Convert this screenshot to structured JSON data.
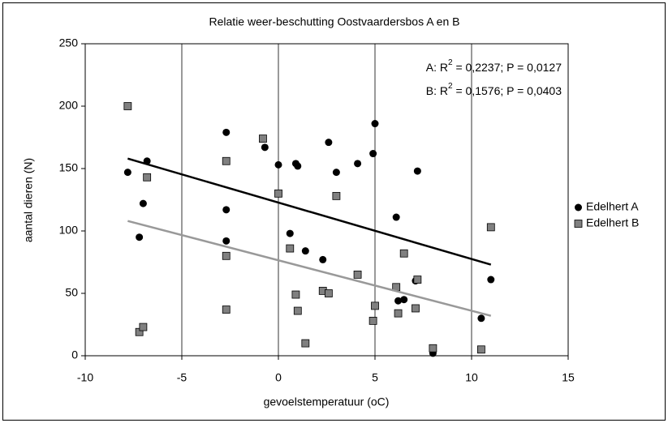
{
  "chart_data": {
    "type": "scatter",
    "title": "Relatie weer-beschutting Oostvaardersbos A en B",
    "x_label": "gevoelstemperatuur (oC)",
    "y_label": "aantal dieren (N)",
    "xlim": [
      -10,
      15
    ],
    "xticks": [
      -10,
      -5,
      0,
      5,
      10,
      15
    ],
    "ylim": [
      0,
      250
    ],
    "yticks": [
      0,
      50,
      100,
      150,
      200,
      250
    ],
    "grid": "x",
    "legend": "right",
    "annotations": [
      {
        "prefix": "A: R",
        "sup": "2",
        "suffix": " = 0,2237; P = 0,0127"
      },
      {
        "prefix": "B: R",
        "sup": "2",
        "suffix": " = 0,1576; P = 0,0403"
      }
    ],
    "series": [
      {
        "name": "Edelhert A",
        "color": "#000000",
        "marker": "circle",
        "trend_color": "#000000",
        "x": [
          -7.8,
          -7.2,
          -7.0,
          -6.8,
          -2.7,
          -2.7,
          -2.7,
          -0.7,
          0,
          0.6,
          0.9,
          1.0,
          1.4,
          2.3,
          2.6,
          3.0,
          4.1,
          5.0,
          4.9,
          6.1,
          6.2,
          6.5,
          7.2,
          7.1,
          8.0,
          10.5,
          11.0
        ],
        "values": [
          147,
          95,
          122,
          156,
          179,
          117,
          92,
          167,
          153,
          98,
          154,
          152,
          84,
          77,
          171,
          147,
          154,
          186,
          162,
          111,
          44,
          45,
          148,
          60,
          2,
          30,
          61
        ],
        "trend": [
          [
            -7.8,
            158
          ],
          [
            11.0,
            73
          ]
        ]
      },
      {
        "name": "Edelhert B",
        "color": "#808080",
        "marker": "square",
        "trend_color": "#999999",
        "x": [
          -7.8,
          -7.2,
          -7.0,
          -6.8,
          -2.7,
          -2.7,
          -2.7,
          -0.8,
          0,
          0.6,
          0.9,
          1.0,
          1.4,
          2.3,
          2.6,
          3.0,
          4.1,
          5.0,
          4.9,
          6.1,
          6.2,
          6.5,
          7.2,
          7.1,
          8.0,
          10.5,
          11.0
        ],
        "values": [
          200,
          19,
          23,
          143,
          156,
          80,
          37,
          174,
          130,
          86,
          49,
          36,
          10,
          52,
          50,
          128,
          65,
          40,
          28,
          55,
          34,
          82,
          61,
          38,
          6,
          5,
          103
        ],
        "trend": [
          [
            -7.8,
            108
          ],
          [
            11.0,
            32
          ]
        ]
      }
    ]
  }
}
